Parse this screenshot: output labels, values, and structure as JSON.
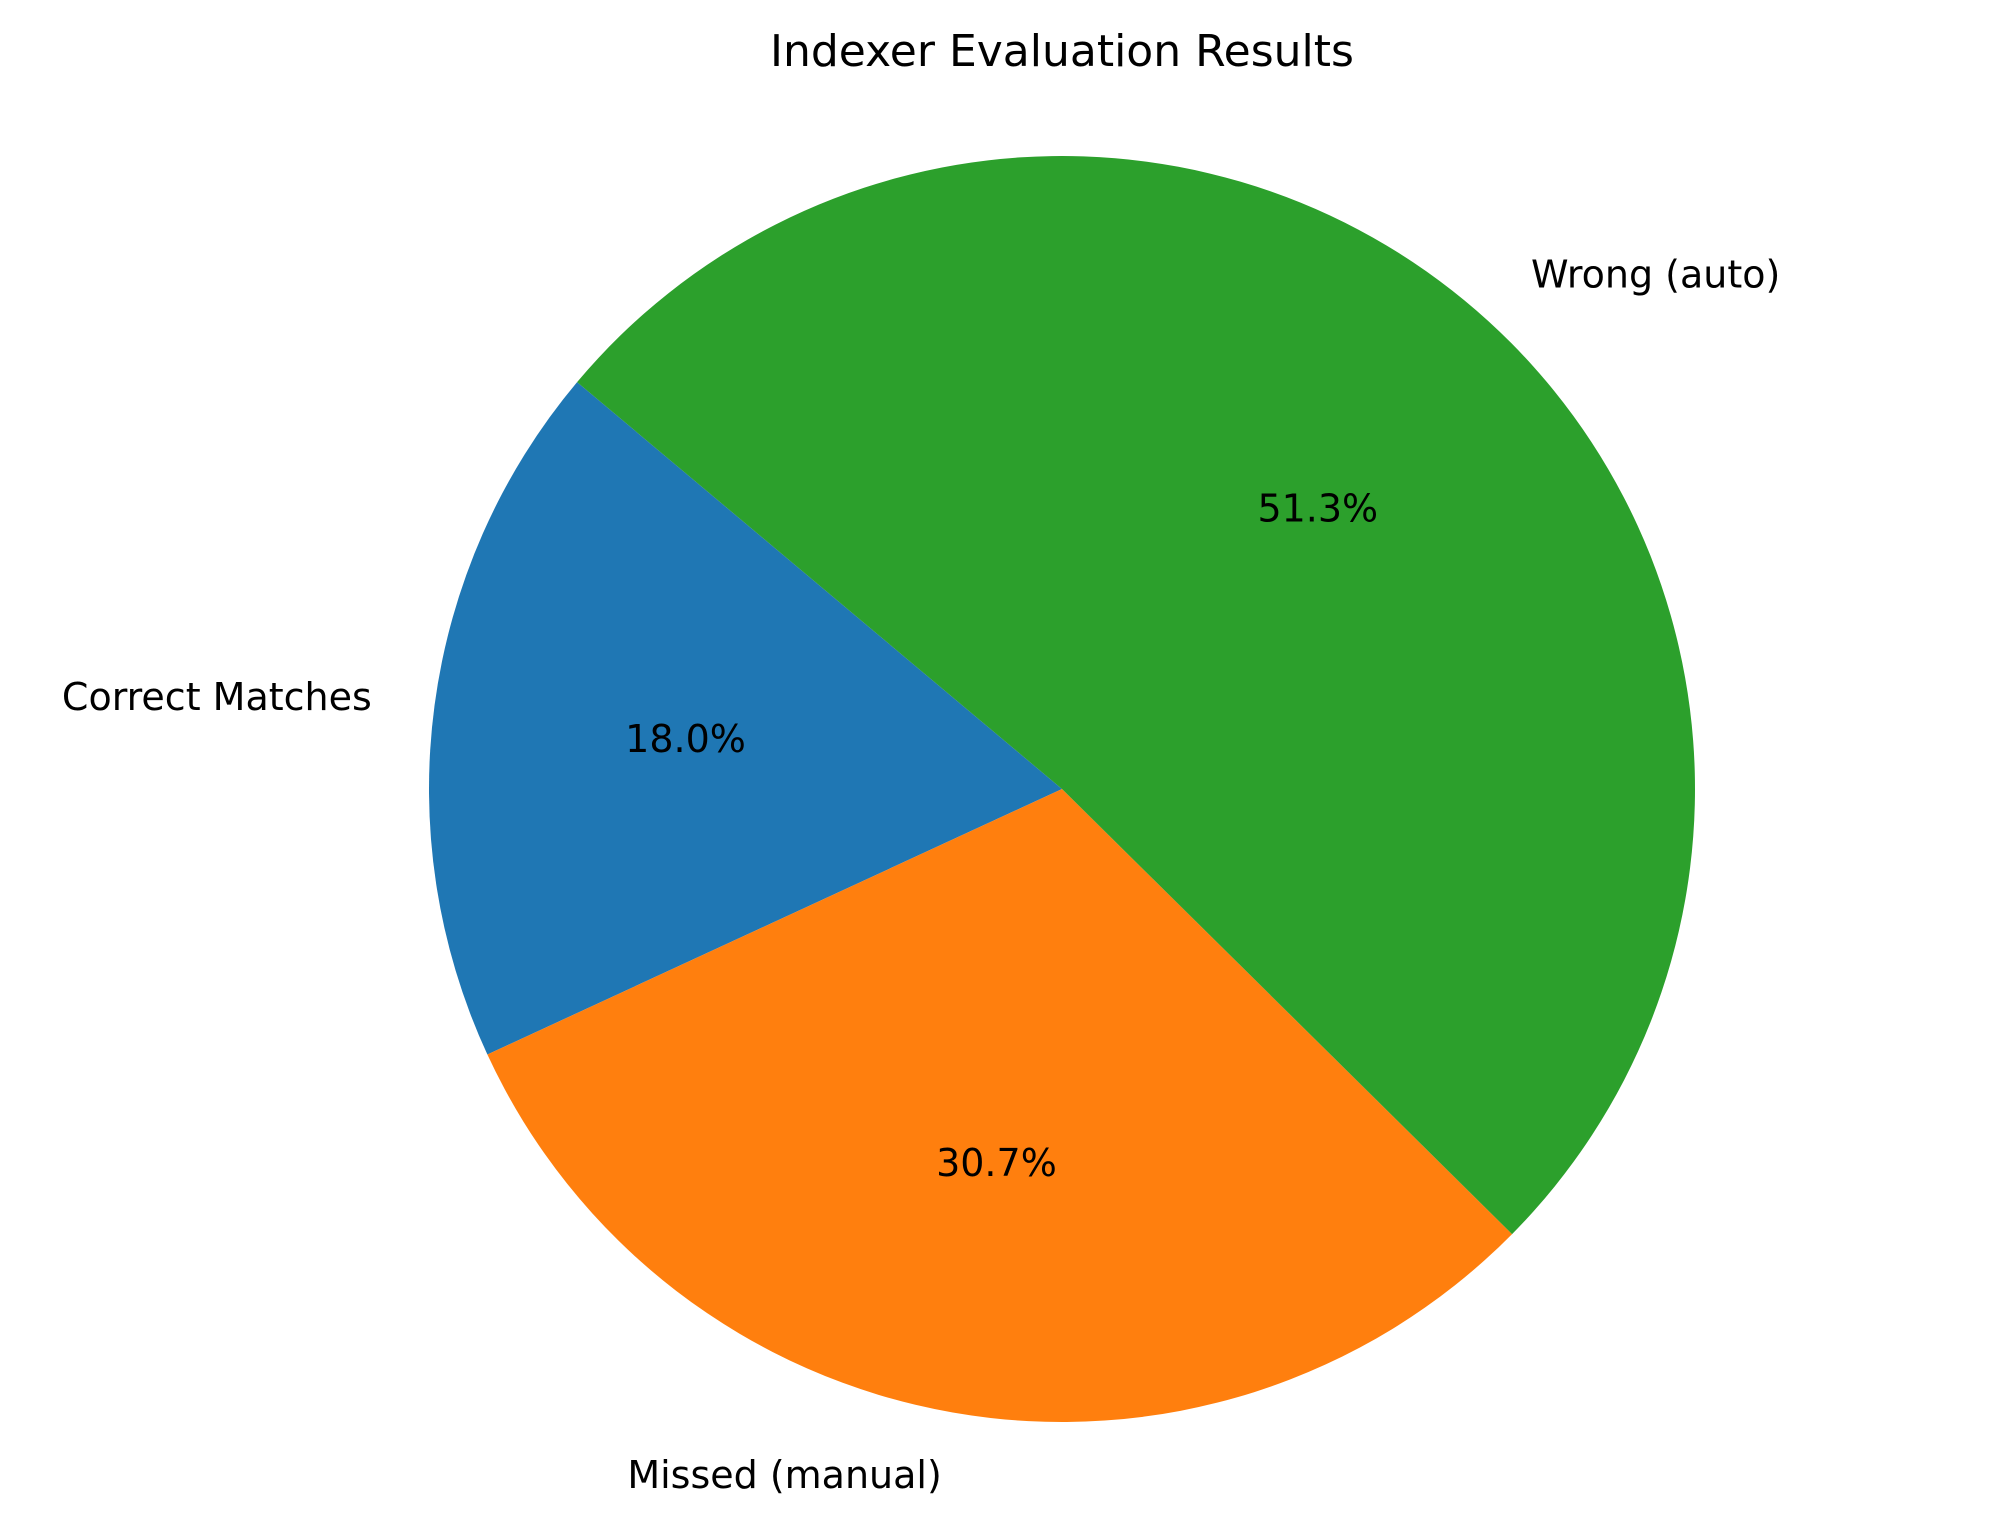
{
  "chart_data": {
    "type": "pie",
    "title": "Indexer Evaluation Results",
    "start_angle_deg": 140,
    "direction": "counterclockwise",
    "slices": [
      {
        "label": "Correct Matches",
        "percent": 18.0,
        "display": "18.0%",
        "color": "#1f77b4"
      },
      {
        "label": "Missed (manual)",
        "percent": 30.7,
        "display": "30.7%",
        "color": "#ff7f0e"
      },
      {
        "label": "Wrong (auto)",
        "percent": 51.3,
        "display": "51.3%",
        "color": "#2ca02c"
      }
    ]
  }
}
